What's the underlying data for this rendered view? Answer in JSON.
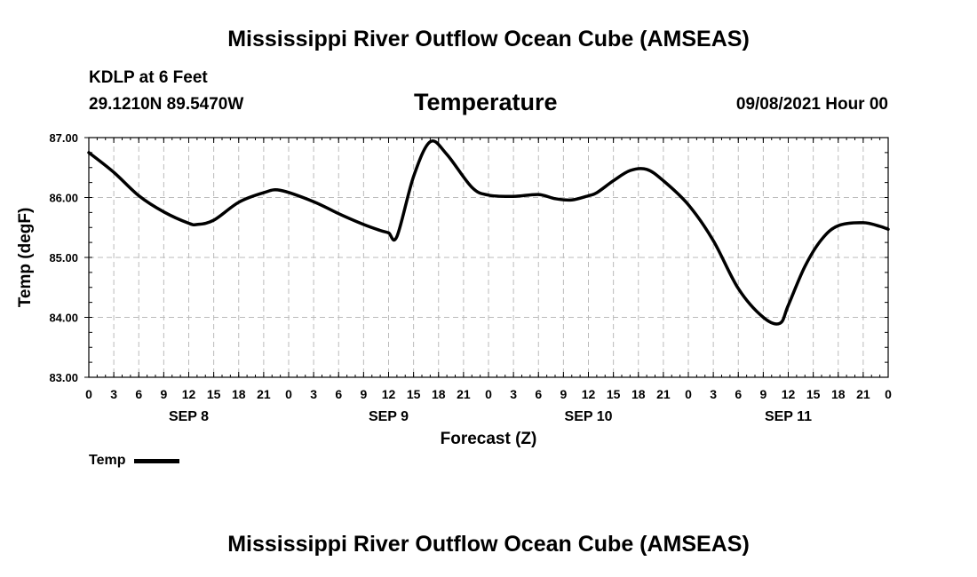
{
  "header": {
    "title": "Mississippi River Outflow Ocean Cube (AMSEAS)",
    "station": "KDLP at 6 Feet",
    "coords": "29.1210N  89.5470W",
    "variable": "Temperature",
    "datetime": "09/08/2021 Hour 00"
  },
  "footer": {
    "title": "Mississippi River Outflow Ocean Cube (AMSEAS)"
  },
  "chart_data": {
    "type": "line",
    "title": "Temperature",
    "xlabel": "Forecast (Z)",
    "ylabel": "Temp (degF)",
    "xlim": [
      0,
      96
    ],
    "ylim": [
      83,
      87
    ],
    "y_ticks": [
      "83.00",
      "84.00",
      "85.00",
      "86.00",
      "87.00"
    ],
    "y_tick_values": [
      83,
      84,
      85,
      86,
      87
    ],
    "x_tick_labels": [
      "0",
      "3",
      "6",
      "9",
      "12",
      "15",
      "18",
      "21",
      "0",
      "3",
      "6",
      "9",
      "12",
      "15",
      "18",
      "21",
      "0",
      "3",
      "6",
      "9",
      "12",
      "15",
      "18",
      "21",
      "0",
      "3",
      "6",
      "9",
      "12",
      "15",
      "18",
      "21",
      "0"
    ],
    "day_labels": [
      {
        "label": "SEP 8",
        "hour": 12
      },
      {
        "label": "SEP 9",
        "hour": 36
      },
      {
        "label": "SEP 10",
        "hour": 60
      },
      {
        "label": "SEP 11",
        "hour": 84
      }
    ],
    "grid": true,
    "legend": "bottom-left",
    "series": [
      {
        "name": "Temp",
        "color": "#000000",
        "x": [
          0,
          3,
          6,
          9,
          12,
          13,
          15,
          18,
          21,
          23,
          27,
          30,
          33,
          35,
          36,
          37,
          39,
          41,
          43,
          46,
          48,
          51,
          54,
          56,
          58,
          60,
          61,
          63,
          65,
          67,
          69,
          72,
          75,
          78,
          81,
          83,
          84,
          86,
          88,
          90,
          93,
          95,
          96
        ],
        "y": [
          86.75,
          86.42,
          86.03,
          85.76,
          85.57,
          85.55,
          85.62,
          85.92,
          86.08,
          86.12,
          85.93,
          85.73,
          85.55,
          85.45,
          85.41,
          85.35,
          86.35,
          86.93,
          86.72,
          86.17,
          86.04,
          86.02,
          86.05,
          85.98,
          85.96,
          86.03,
          86.08,
          86.28,
          86.45,
          86.47,
          86.28,
          85.88,
          85.28,
          84.48,
          84.0,
          83.9,
          84.2,
          84.85,
          85.3,
          85.53,
          85.58,
          85.52,
          85.47
        ]
      }
    ]
  }
}
